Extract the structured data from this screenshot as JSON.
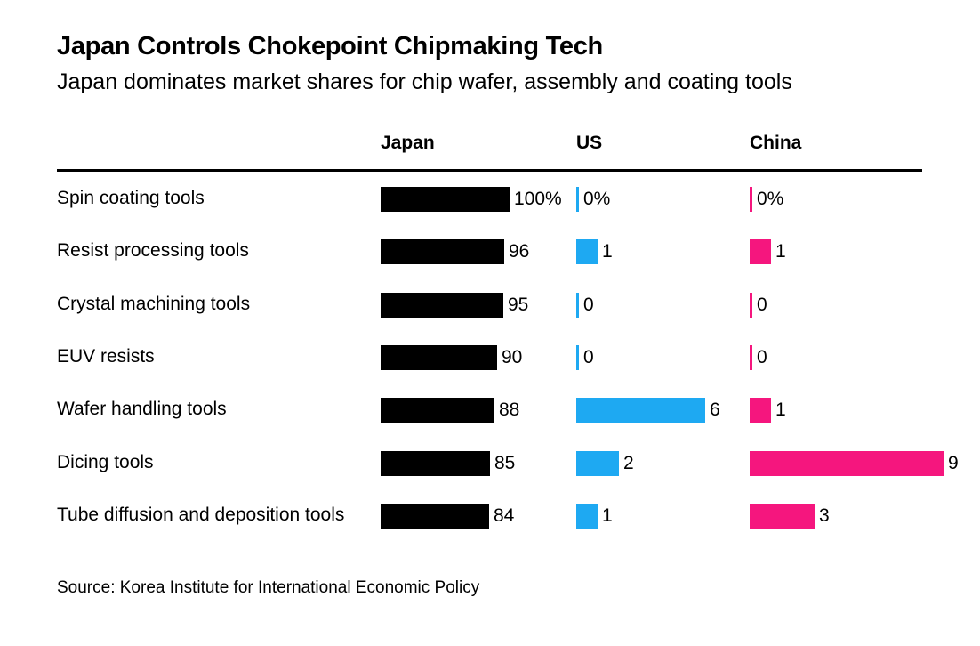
{
  "header": {
    "title": "Japan Controls Chokepoint Chipmaking Tech",
    "subtitle": "Japan dominates market shares for chip wafer, assembly and coating tools"
  },
  "source": "Source: Korea Institute for International Economic Policy",
  "colors": {
    "Japan": "#000000",
    "US": "#1ea9f2",
    "China": "#f5167e"
  },
  "chart_data": {
    "type": "bar",
    "orientation": "horizontal",
    "title": "Japan Controls Chokepoint Chipmaking Tech",
    "subtitle": "Japan dominates market shares for chip wafer, assembly and coating tools",
    "unit": "%",
    "categories": [
      "Spin coating tools",
      "Resist processing tools",
      "Crystal machining tools",
      "EUV resists",
      "Wafer handling tools",
      "Dicing tools",
      "Tube diffusion and deposition tools"
    ],
    "series": [
      {
        "name": "Japan",
        "values": [
          100,
          96,
          95,
          90,
          88,
          85,
          84
        ],
        "labels": [
          "100%",
          "96",
          "95",
          "90",
          "88",
          "85",
          "84"
        ]
      },
      {
        "name": "US",
        "values": [
          0,
          1,
          0,
          0,
          6,
          2,
          1
        ],
        "labels": [
          "0%",
          "1",
          "0",
          "0",
          "6",
          "2",
          "1"
        ]
      },
      {
        "name": "China",
        "values": [
          0,
          1,
          0,
          0,
          1,
          9,
          3
        ],
        "labels": [
          "0%",
          "1",
          "0",
          "0",
          "1",
          "9",
          "3"
        ]
      }
    ],
    "grid": false,
    "legend": "column-headers"
  }
}
